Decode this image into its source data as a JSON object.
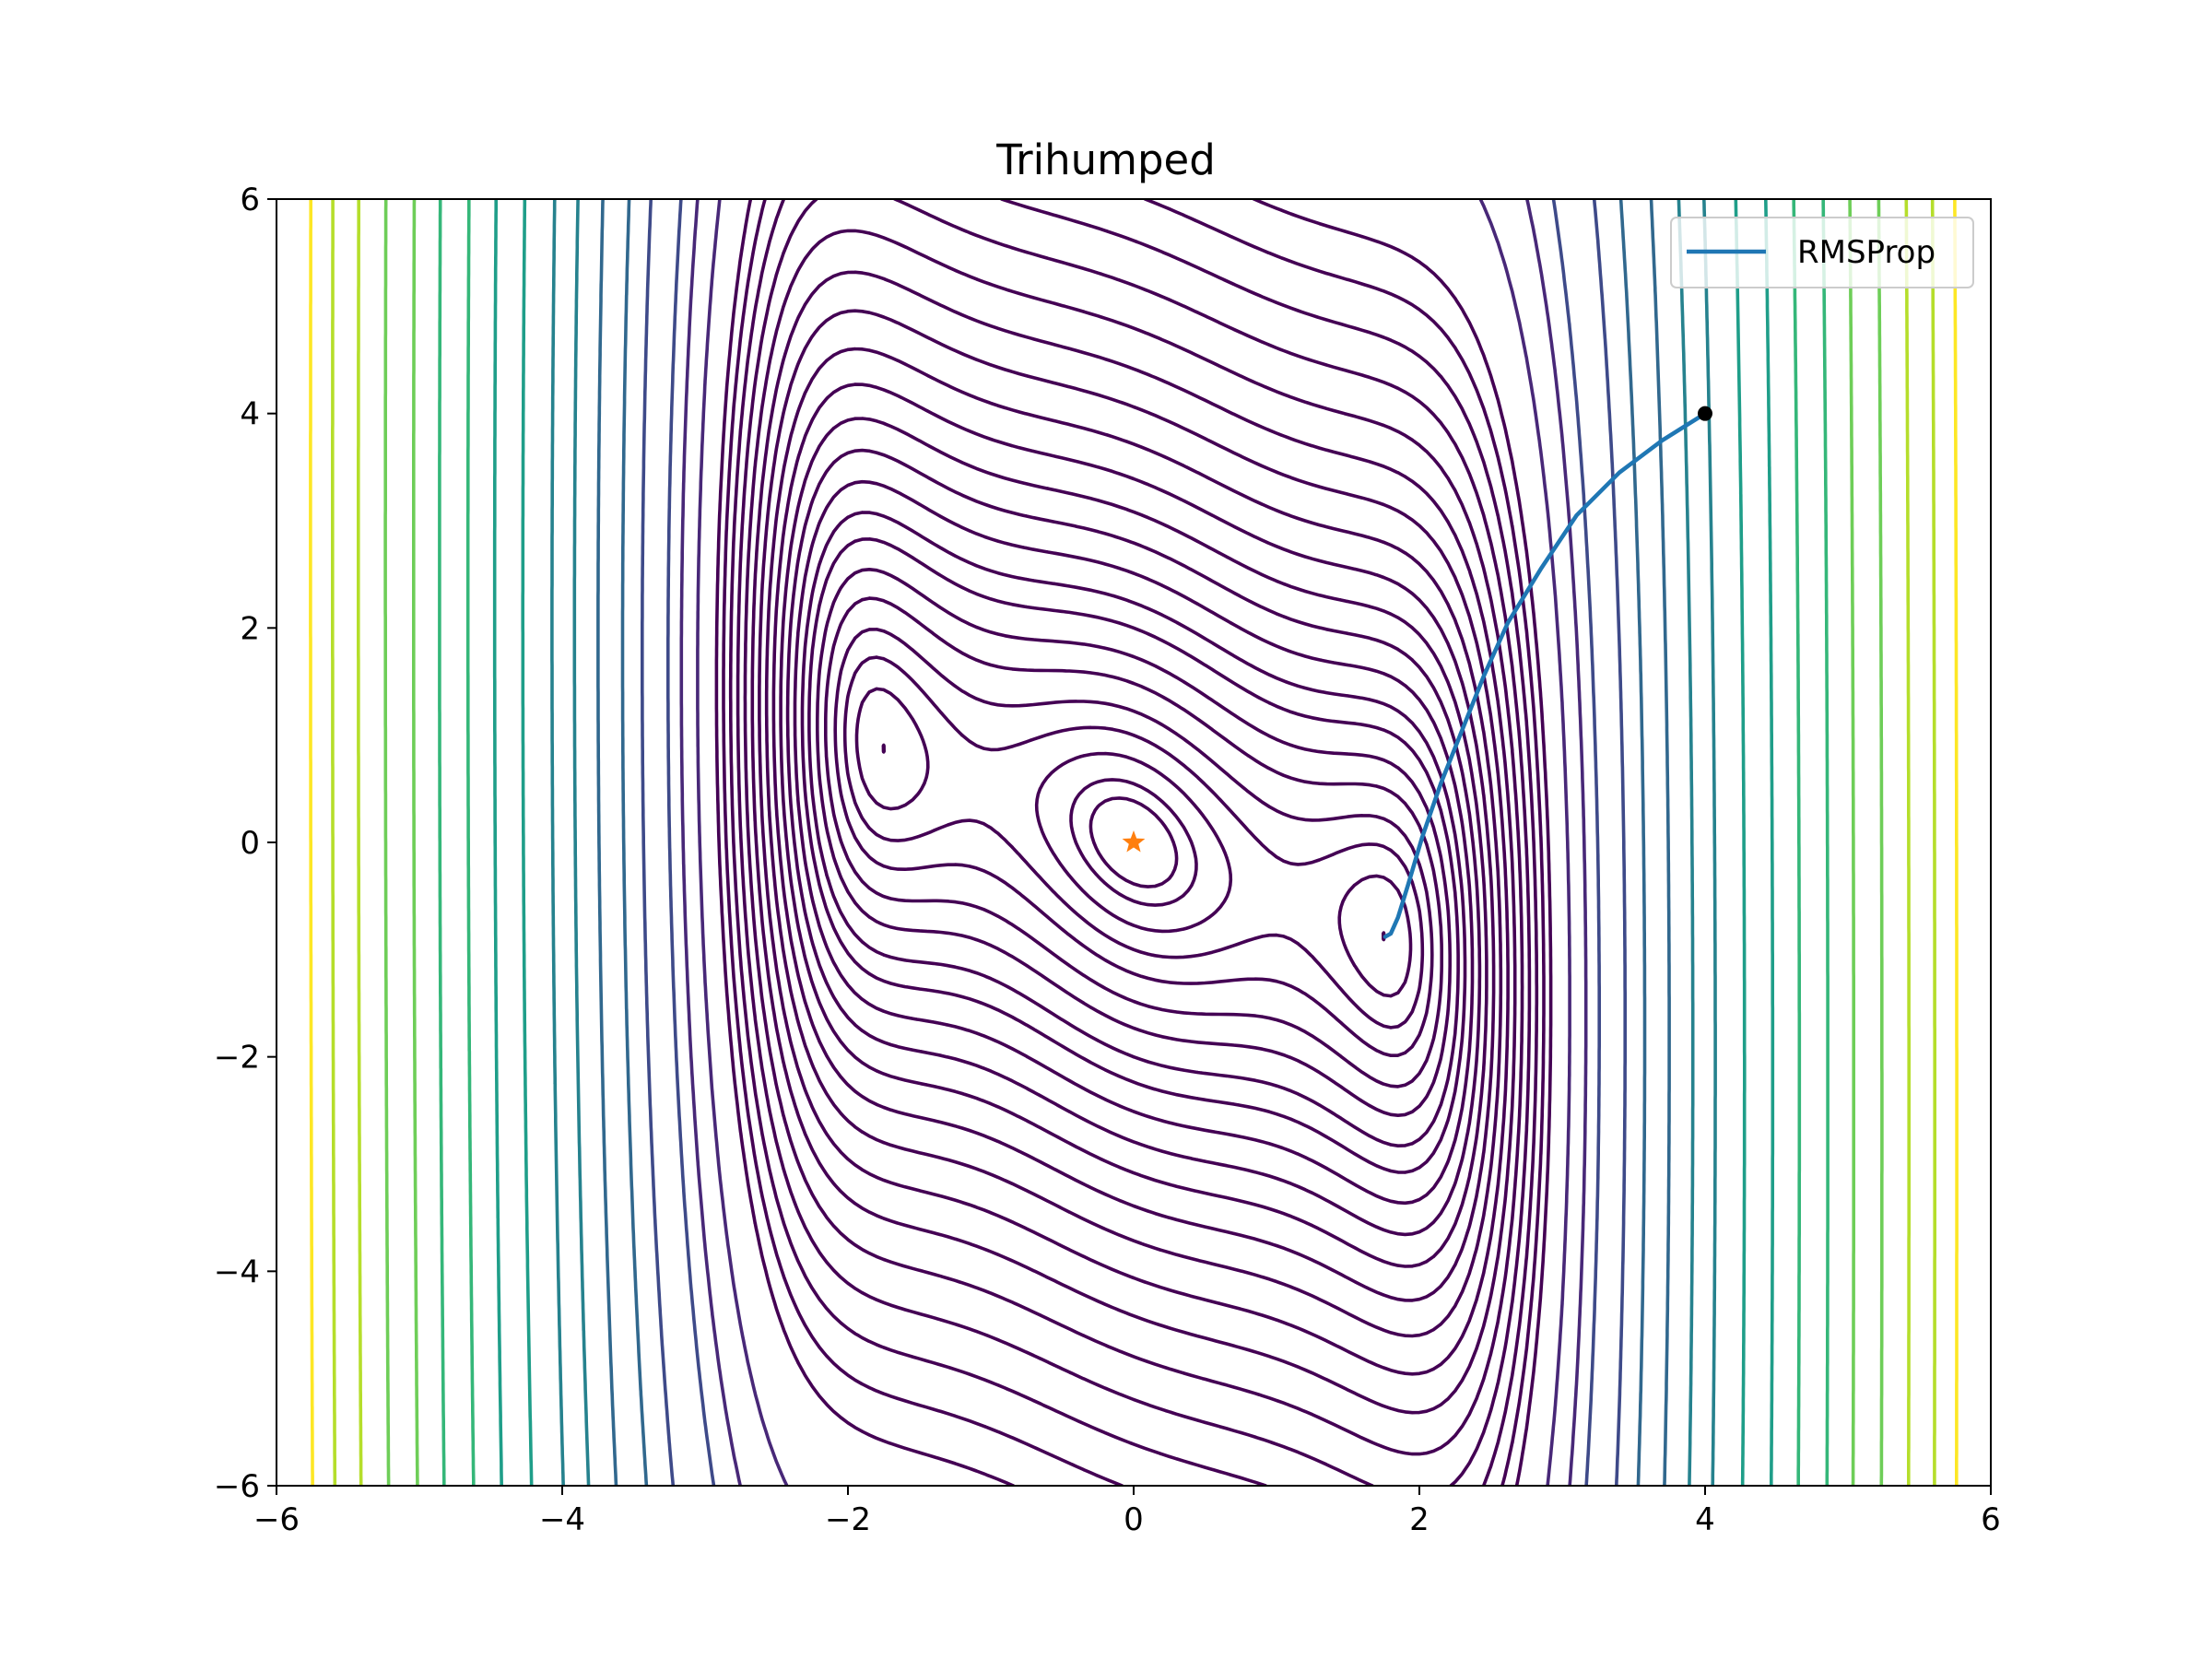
{
  "chart_data": {
    "type": "line",
    "title": "Trihumped",
    "xlabel": "",
    "ylabel": "",
    "xlim": [
      -6,
      6
    ],
    "ylim": [
      -6,
      6
    ],
    "x_ticks": [
      "−6",
      "−4",
      "−2",
      "0",
      "2",
      "4",
      "6"
    ],
    "y_ticks": [
      "−6",
      "−4",
      "−2",
      "0",
      "2",
      "4",
      "6"
    ],
    "x_tick_values": [
      -6,
      -4,
      -2,
      0,
      2,
      4,
      6
    ],
    "y_tick_values": [
      -6,
      -4,
      -2,
      0,
      2,
      4,
      6
    ],
    "grid": false,
    "legend_position": "top-right",
    "colormap": "viridis",
    "contour_function": "2x^2 - 1.05x^4 + x^6/6 + xy + y^2",
    "contour": {
      "low_levels": [
        0.15,
        0.3,
        0.6,
        1.0,
        1.5,
        2.2,
        3.0,
        4,
        5,
        6.3,
        7.8,
        9.5,
        11.5,
        13.8,
        16.5,
        19.5,
        23,
        27,
        31.5,
        36.5,
        42
      ],
      "high_levels": [
        60,
        80,
        100,
        150,
        200,
        280,
        380,
        500,
        700,
        950,
        1250,
        1650,
        2100,
        2700,
        3400,
        4200,
        5000
      ],
      "low_color": "#440154",
      "high_colors": [
        "#482878",
        "#3e4a89",
        "#31688e",
        "#26828e",
        "#1f9e89",
        "#35b779",
        "#6ece58",
        "#b5de2b",
        "#fde725"
      ]
    },
    "series": [
      {
        "name": "RMSProp",
        "color": "#1f77b4",
        "x": [
          4.0,
          3.7,
          3.4,
          3.1,
          2.85,
          2.62,
          2.45,
          2.3,
          2.15,
          2.02,
          1.92,
          1.85,
          1.8,
          1.76
        ],
        "y": [
          4.0,
          3.75,
          3.45,
          3.05,
          2.55,
          2.05,
          1.55,
          1.05,
          0.55,
          0.05,
          -0.4,
          -0.7,
          -0.85,
          -0.88
        ]
      }
    ],
    "start_point": {
      "x": 4,
      "y": 4,
      "color": "#000000"
    },
    "minimum_marker": {
      "x": 0,
      "y": 0,
      "color": "#ff7f0e",
      "marker": "star"
    }
  }
}
